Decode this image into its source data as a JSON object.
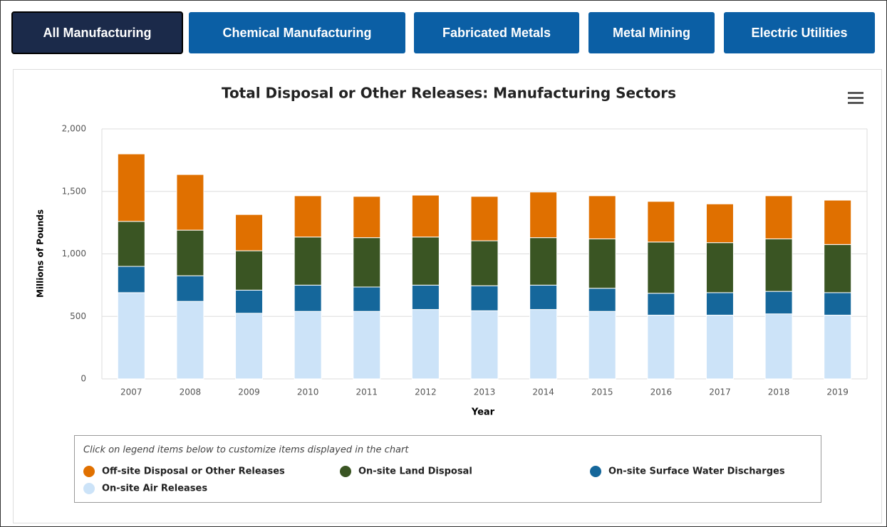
{
  "tabs": [
    "All Manufacturing",
    "Chemical Manufacturing",
    "Fabricated Metals",
    "Metal Mining",
    "Electric Utilities"
  ],
  "chart_data": {
    "type": "bar",
    "stacked": true,
    "title": "Total Disposal or Other Releases: Manufacturing Sectors",
    "x_label": "Year",
    "y_label": "Millions of Pounds",
    "legend_note": "Click on legend items below to customize items displayed in the chart",
    "categories": [
      "2007",
      "2008",
      "2009",
      "2010",
      "2011",
      "2012",
      "2013",
      "2014",
      "2015",
      "2016",
      "2017",
      "2018",
      "2019"
    ],
    "series": [
      {
        "name": "Off-site Disposal or Other Releases",
        "color": "#e07000",
        "values": [
          540,
          445,
          290,
          330,
          330,
          335,
          355,
          365,
          345,
          325,
          310,
          345,
          355
        ]
      },
      {
        "name": "On-site Land Disposal",
        "color": "#3a5523",
        "values": [
          360,
          365,
          315,
          385,
          395,
          385,
          360,
          380,
          395,
          410,
          400,
          420,
          385
        ]
      },
      {
        "name": "On-site Surface Water Discharges",
        "color": "#15679b",
        "values": [
          210,
          205,
          185,
          210,
          195,
          195,
          200,
          195,
          185,
          175,
          180,
          180,
          180
        ]
      },
      {
        "name": "On-site Air Releases",
        "color": "#cce3f8",
        "values": [
          690,
          620,
          525,
          540,
          540,
          555,
          545,
          555,
          540,
          510,
          510,
          520,
          510
        ]
      }
    ],
    "ylim": [
      0,
      2000
    ],
    "yticks": [
      0,
      500,
      {
        "value": 1000,
        "label": "1,000"
      },
      {
        "value": 1500,
        "label": "1,500"
      },
      {
        "value": 2000,
        "label": "2,000"
      }
    ],
    "grid": true
  }
}
